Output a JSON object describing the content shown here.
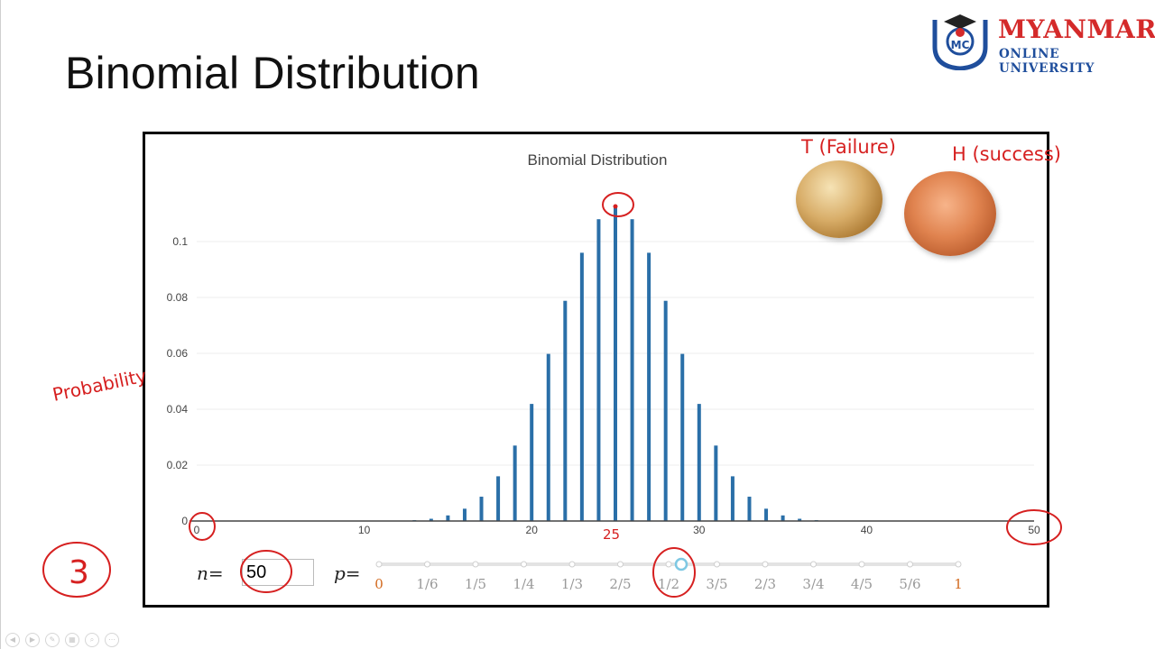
{
  "slide": {
    "title": "Binomial Distribution"
  },
  "logo": {
    "name_line1": "MYANMAR",
    "name_line2": "ONLINE UNIVERSITY",
    "initials": "MC"
  },
  "chart_data": {
    "type": "bar",
    "title": "Binomial Distribution",
    "x": [
      0,
      1,
      2,
      3,
      4,
      5,
      6,
      7,
      8,
      9,
      10,
      11,
      12,
      13,
      14,
      15,
      16,
      17,
      18,
      19,
      20,
      21,
      22,
      23,
      24,
      25,
      26,
      27,
      28,
      29,
      30,
      31,
      32,
      33,
      34,
      35,
      36,
      37,
      38,
      39,
      40,
      41,
      42,
      43,
      44,
      45,
      46,
      47,
      48,
      49,
      50
    ],
    "values": [
      0,
      0,
      0,
      0,
      0,
      0,
      0,
      0,
      0,
      0,
      0,
      0,
      0.0001,
      0.0003,
      0.0008,
      0.002,
      0.0044,
      0.0087,
      0.016,
      0.027,
      0.0419,
      0.0598,
      0.0788,
      0.096,
      0.108,
      0.1123,
      0.108,
      0.096,
      0.0788,
      0.0598,
      0.0419,
      0.027,
      0.016,
      0.0087,
      0.0044,
      0.002,
      0.0008,
      0.0003,
      0.0001,
      0,
      0,
      0,
      0,
      0,
      0,
      0,
      0,
      0,
      0,
      0,
      0
    ],
    "xlim": [
      0,
      50
    ],
    "ylim": [
      0,
      0.12
    ],
    "x_ticks": [
      0,
      10,
      20,
      30,
      40,
      50
    ],
    "y_ticks": [
      0,
      0.02,
      0.04,
      0.06,
      0.08,
      0.1
    ],
    "x_tick_labels": [
      "0",
      "10",
      "20",
      "30",
      "40",
      "50"
    ],
    "y_tick_labels": [
      "0",
      "0.02",
      "0.04",
      "0.06",
      "0.08",
      "0.1"
    ],
    "bar_color": "#2a6fa8",
    "grid": true
  },
  "controls": {
    "n_label": "n=",
    "n_value": "50",
    "p_label": "p=",
    "p_options": [
      "0",
      "1/6",
      "1/5",
      "1/4",
      "1/3",
      "2/5",
      "1/2",
      "3/5",
      "2/3",
      "3/4",
      "4/5",
      "5/6",
      "1"
    ],
    "p_selected_index": 6
  },
  "annotations": {
    "tails": "T (Failure)",
    "heads": "H (success)",
    "probability": "Probability",
    "x25": "25",
    "x0": "0",
    "x50": "50",
    "three": "3"
  }
}
